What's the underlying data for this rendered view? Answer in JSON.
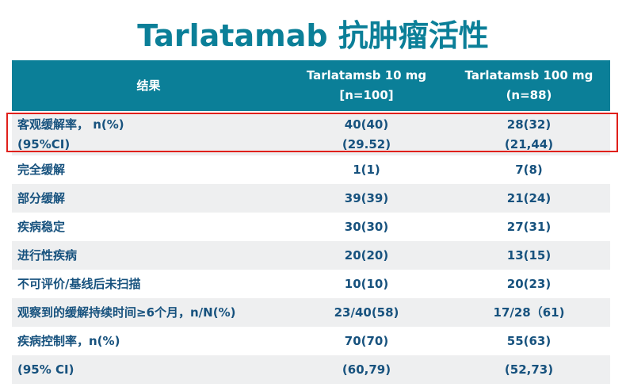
{
  "title": "Tarlatamab 抗肿瘤活性",
  "table": {
    "header": [
      [
        "结果"
      ],
      [
        "Tarlatamsb 10 mg",
        "[n=100]"
      ],
      [
        "Tarlatamsb 100 mg",
        "(n=88)"
      ]
    ],
    "rows": [
      [
        [
          "客观缓解率，  n(%)",
          "(95%CI)"
        ],
        [
          "40(40)",
          "(29.52)"
        ],
        [
          "28(32)",
          "(21,44)"
        ]
      ],
      [
        [
          "完全缓解"
        ],
        [
          "1(1)"
        ],
        [
          "7(8)"
        ]
      ],
      [
        [
          "部分缓解"
        ],
        [
          "39(39)"
        ],
        [
          "21(24)"
        ]
      ],
      [
        [
          "疾病稳定"
        ],
        [
          "30(30)"
        ],
        [
          "27(31)"
        ]
      ],
      [
        [
          "进行性疾病"
        ],
        [
          "20(20)"
        ],
        [
          "13(15)"
        ]
      ],
      [
        [
          "不可评价/基线后未扫描"
        ],
        [
          "10(10)"
        ],
        [
          "20(23)"
        ]
      ],
      [
        [
          "观察到的缓解持续时间≥6个月，n/N(%)"
        ],
        [
          "23/40(58)"
        ],
        [
          "17/28（61)"
        ]
      ],
      [
        [
          "疾病控制率，n(%)"
        ],
        [
          "70(70)"
        ],
        [
          "55(63)"
        ]
      ],
      [
        [
          "(95%  CI)"
        ],
        [
          "(60,79)"
        ],
        [
          "(52,73)"
        ]
      ]
    ]
  }
}
